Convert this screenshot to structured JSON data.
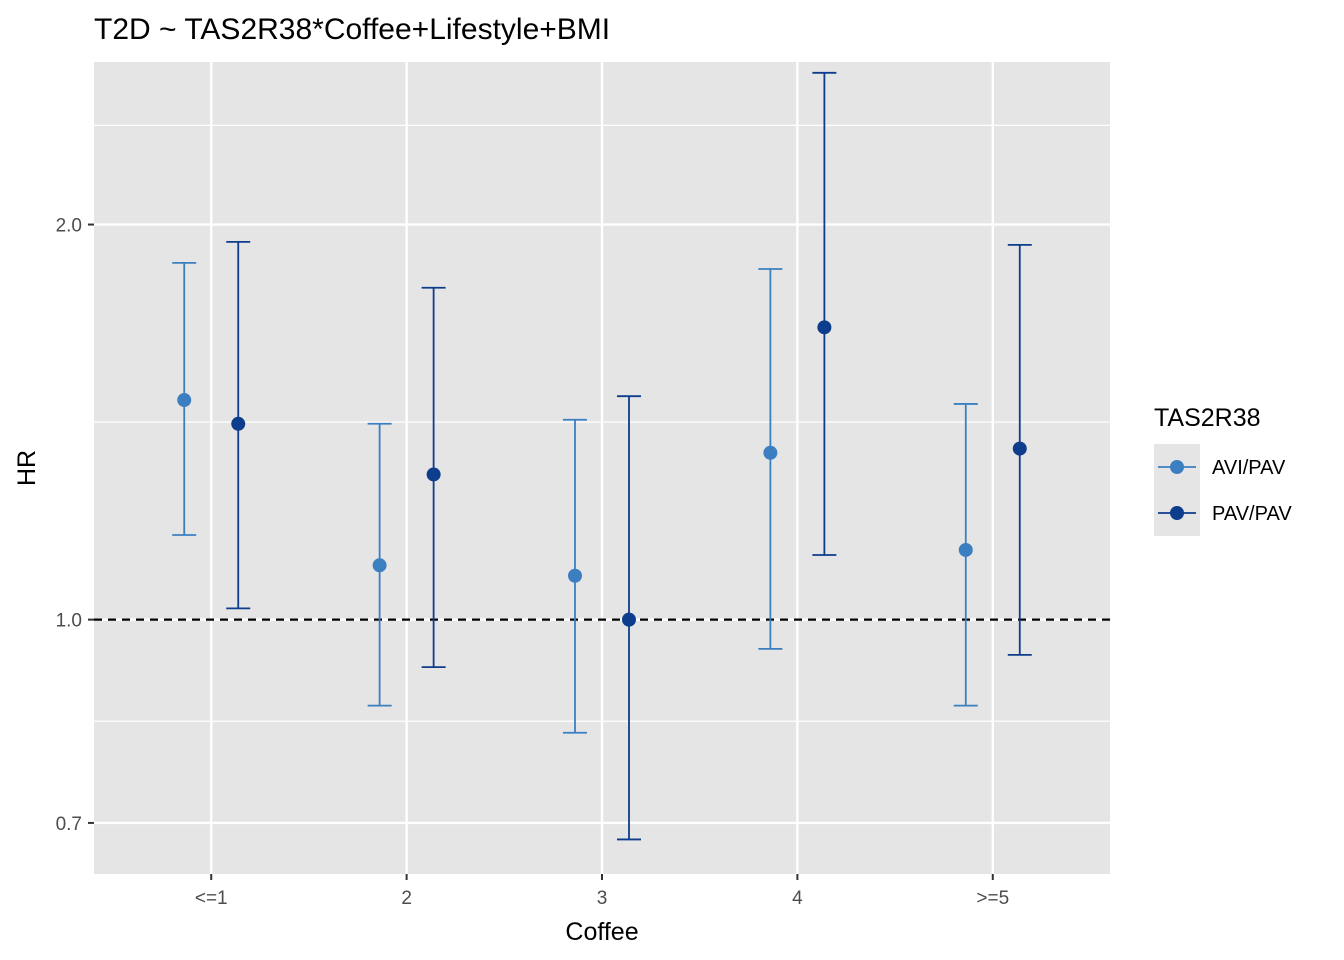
{
  "chart_data": {
    "type": "scatter",
    "title": "T2D ~ TAS2R38*Coffee+Lifestyle+BMI",
    "xlabel": "Coffee",
    "ylabel": "HR",
    "y_scale": "log",
    "ylim": [
      0.64,
      2.66
    ],
    "y_ticks": [
      {
        "value": 0.7,
        "label": "0.7"
      },
      {
        "value": 1.0,
        "label": "1.0"
      },
      {
        "value": 2.0,
        "label": "2.0"
      }
    ],
    "y_minor_gridlines": [
      0.8367,
      1.4142,
      2.38
    ],
    "reference_line": {
      "y": 1.0,
      "style": "dashed"
    },
    "categories": [
      "<=1",
      "2",
      "3",
      "4",
      ">=5"
    ],
    "legend_title": "TAS2R38",
    "legend_position": "right",
    "series": [
      {
        "name": "AVI/PAV",
        "color": "#3b7fc0",
        "values": [
          1.47,
          1.1,
          1.08,
          1.34,
          1.13
        ],
        "lower": [
          1.16,
          0.86,
          0.82,
          0.95,
          0.86
        ],
        "upper": [
          1.87,
          1.41,
          1.42,
          1.85,
          1.46
        ]
      },
      {
        "name": "PAV/PAV",
        "color": "#0d3d8c",
        "values": [
          1.41,
          1.29,
          1.0,
          1.67,
          1.35
        ],
        "lower": [
          1.02,
          0.92,
          0.68,
          1.12,
          0.94
        ],
        "upper": [
          1.94,
          1.79,
          1.48,
          2.61,
          1.93
        ]
      }
    ]
  }
}
